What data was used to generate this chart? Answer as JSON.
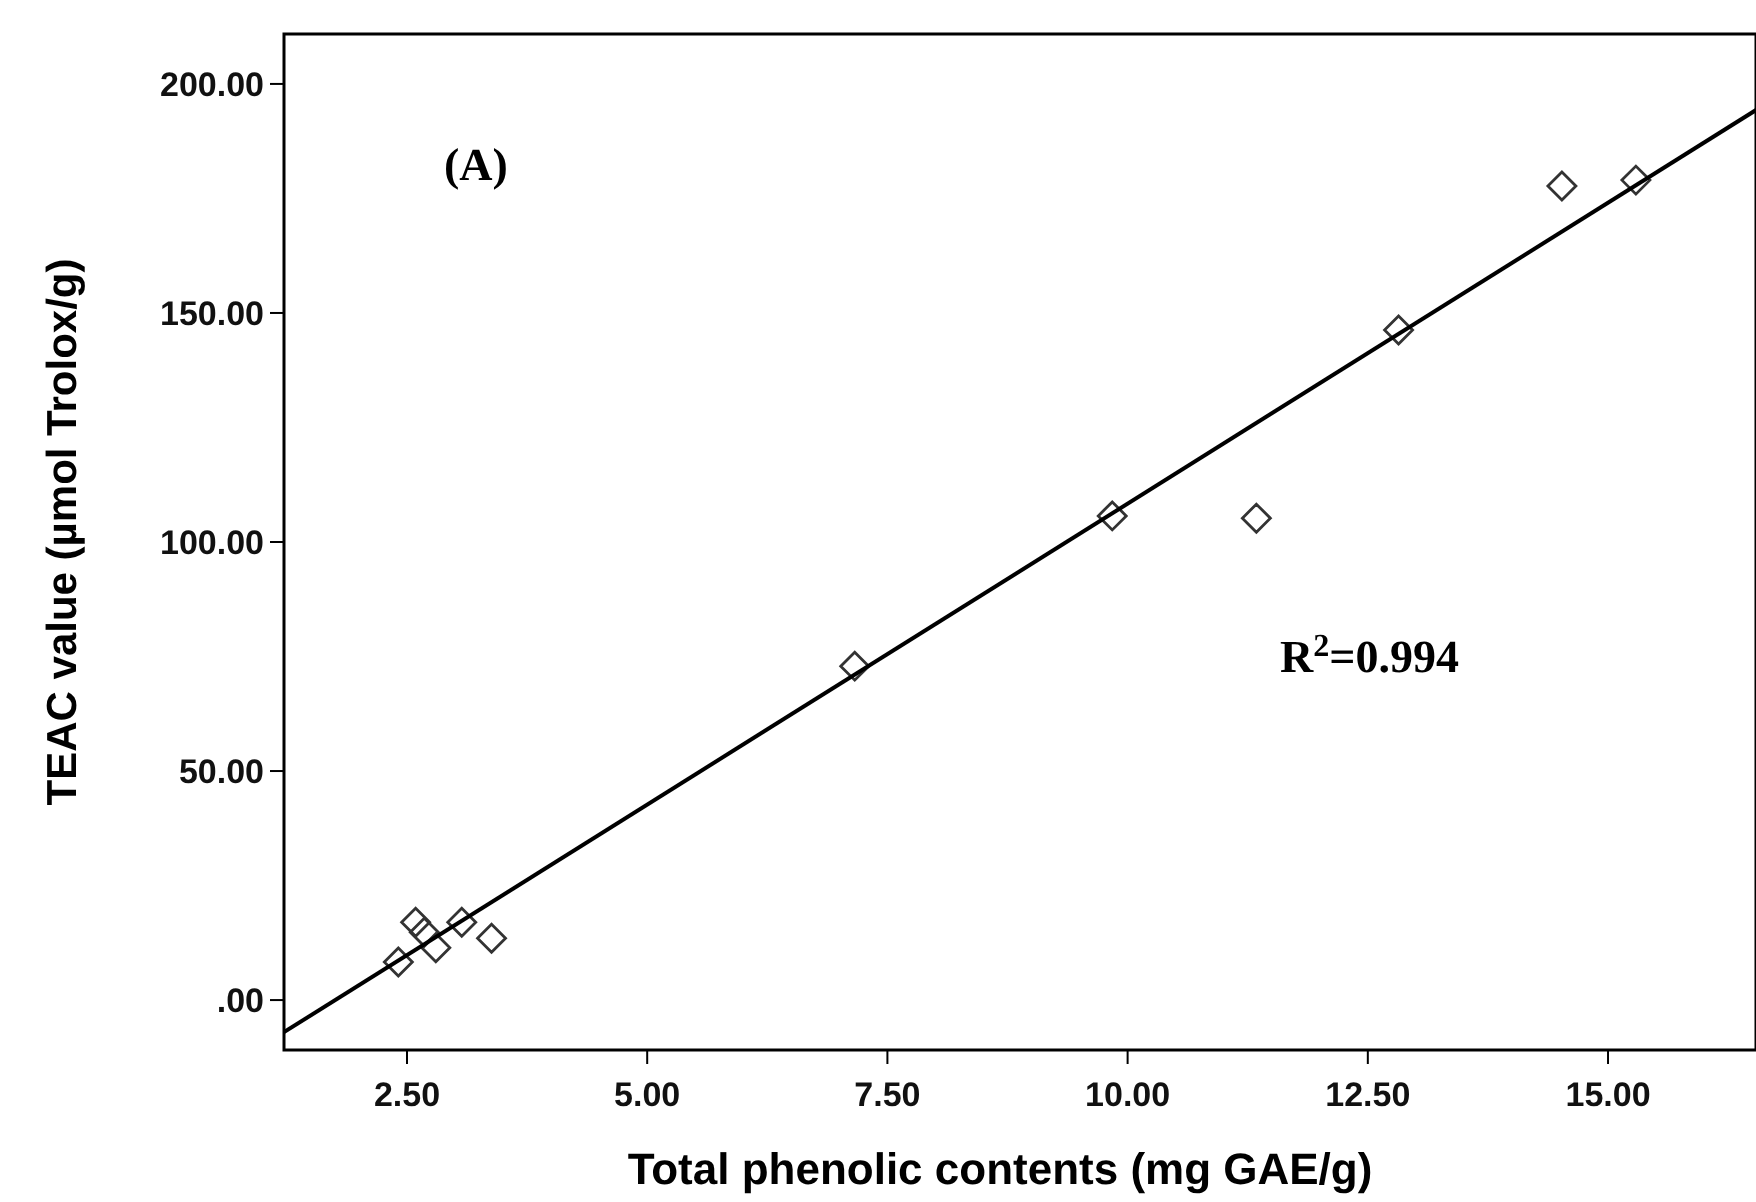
{
  "chart_data": {
    "type": "scatter",
    "xlabel": "Total phenolic contents (mg GAE/g)",
    "ylabel": "TEAC value (µmol Trolox/g)",
    "xlim": [
      1.22,
      16.54
    ],
    "ylim": [
      -10.9,
      210.9
    ],
    "xticks": [
      {
        "value": 2.5,
        "label": "2.50"
      },
      {
        "value": 5,
        "label": "5.00"
      },
      {
        "value": 7.5,
        "label": "7.50"
      },
      {
        "value": 10,
        "label": "10.00"
      },
      {
        "value": 12.5,
        "label": "12.50"
      },
      {
        "value": 15,
        "label": "15.00"
      }
    ],
    "yticks": [
      {
        "value": 0,
        "label": ".00"
      },
      {
        "value": 50,
        "label": "50.00"
      },
      {
        "value": 100,
        "label": "100.00"
      },
      {
        "value": 150,
        "label": "150.00"
      },
      {
        "value": 200,
        "label": "200.00"
      }
    ],
    "series": [
      {
        "color": "#333333",
        "marker": "diamond",
        "x": [
          2.41,
          2.59,
          2.68,
          2.8,
          3.07,
          3.38,
          7.16,
          9.84,
          11.34,
          12.82,
          14.52,
          15.29
        ],
        "values": [
          8.3,
          17,
          14.8,
          11.4,
          17,
          13.5,
          72.9,
          105.7,
          105.2,
          146.3,
          177.7,
          179
        ]
      },
      {
        "type": "line",
        "color": "#000000",
        "marker": "none",
        "line_style": "solid",
        "x": [
          1.22,
          16.54
        ],
        "values": [
          -7,
          194.3
        ]
      }
    ],
    "annotations": [
      "(A)",
      "R$^{2}$=0.994"
    ],
    "grid": false
  }
}
